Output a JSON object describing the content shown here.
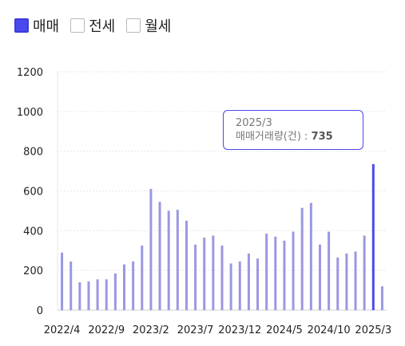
{
  "legend": {
    "items": [
      {
        "label": "매매",
        "checked": true
      },
      {
        "label": "전세",
        "checked": false
      },
      {
        "label": "월세",
        "checked": false
      }
    ]
  },
  "tooltip": {
    "date": "2025/3",
    "series_label": "매매거래량(건)",
    "separator": " : ",
    "value": "735"
  },
  "colors": {
    "bar": "#9a98e2",
    "bar_highlight": "#4a49ee",
    "grid": "#e6e6e6"
  },
  "chart_data": {
    "type": "bar",
    "x": [
      "2022/4",
      "2022/5",
      "2022/6",
      "2022/7",
      "2022/8",
      "2022/9",
      "2022/10",
      "2022/11",
      "2022/12",
      "2023/1",
      "2023/2",
      "2023/3",
      "2023/4",
      "2023/5",
      "2023/6",
      "2023/7",
      "2023/8",
      "2023/9",
      "2023/10",
      "2023/11",
      "2023/12",
      "2024/1",
      "2024/2",
      "2024/3",
      "2024/4",
      "2024/5",
      "2024/6",
      "2024/7",
      "2024/8",
      "2024/9",
      "2024/10",
      "2024/11",
      "2024/12",
      "2025/1",
      "2025/2",
      "2025/3",
      "2025/4"
    ],
    "values": [
      290,
      245,
      140,
      145,
      155,
      155,
      185,
      230,
      245,
      325,
      610,
      545,
      500,
      505,
      450,
      330,
      365,
      375,
      325,
      235,
      245,
      285,
      260,
      385,
      370,
      350,
      395,
      515,
      540,
      330,
      395,
      265,
      285,
      295,
      375,
      735,
      120
    ],
    "xtick_labels": [
      "2022/4",
      "2022/9",
      "2023/2",
      "2023/7",
      "2023/12",
      "2024/5",
      "2024/10",
      "2025/3"
    ],
    "ylim": [
      0,
      1200
    ],
    "yticks": [
      0,
      200,
      400,
      600,
      800,
      1000,
      1200
    ],
    "highlight": "2025/3",
    "grid": true
  }
}
